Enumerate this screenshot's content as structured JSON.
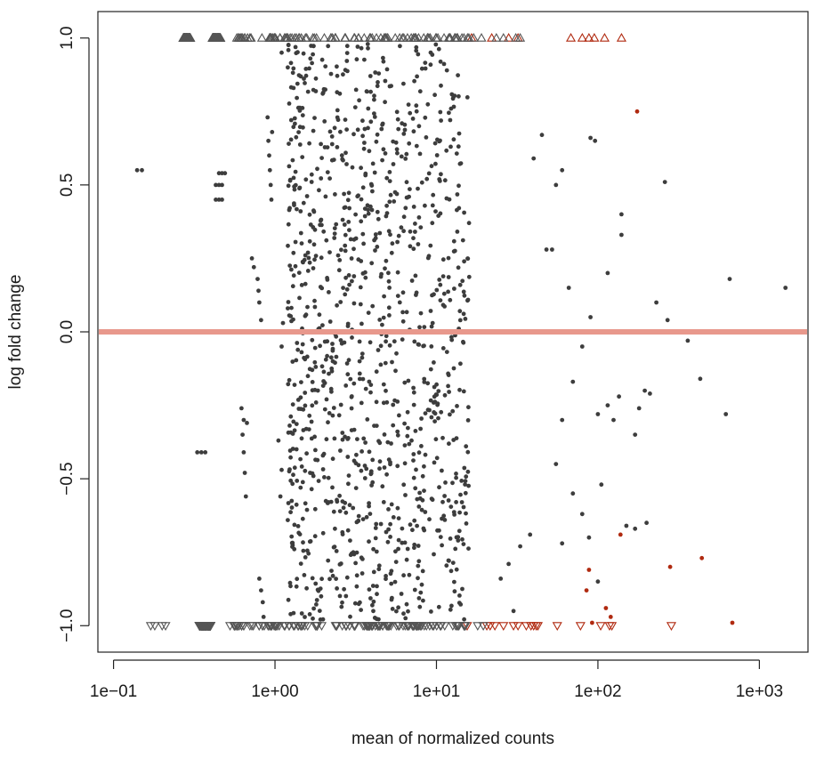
{
  "chart_data": {
    "type": "scatter",
    "title": "",
    "xlabel": "mean of normalized counts",
    "ylabel": "log fold change",
    "x_scale": "log10",
    "xlim": [
      0.08,
      2000
    ],
    "ylim": [
      -1.09,
      1.09
    ],
    "x_ticks": [
      {
        "value": 0.1,
        "label": "1e−01"
      },
      {
        "value": 1,
        "label": "1e+00"
      },
      {
        "value": 10,
        "label": "1e+01"
      },
      {
        "value": 100,
        "label": "1e+02"
      },
      {
        "value": 1000,
        "label": "1e+03"
      }
    ],
    "y_ticks": [
      {
        "value": -1.0,
        "label": "−1.0"
      },
      {
        "value": -0.5,
        "label": "−0.5"
      },
      {
        "value": 0.0,
        "label": "0.0"
      },
      {
        "value": 0.5,
        "label": "0.5"
      },
      {
        "value": 1.0,
        "label": "1.0"
      }
    ],
    "reference_line": {
      "y": 0,
      "color": "#e8988c"
    },
    "grid": false,
    "colors": {
      "not_significant": "#3d3d3d",
      "significant": "#b02a10"
    },
    "marker_legend": {
      "dot": "value within plotted range",
      "triangle_up": "value above 1 (clipped)",
      "triangle_down": "value below -1 (clipped)"
    },
    "series": [
      {
        "marker": "circle",
        "color": "#b02a10",
        "points": [
          [
            175,
            0.75
          ],
          [
            280,
            -0.8
          ],
          [
            440,
            -0.77
          ],
          [
            88,
            -0.81
          ],
          [
            85,
            -0.88
          ],
          [
            92,
            -0.99
          ],
          [
            112,
            -0.94
          ],
          [
            120,
            -0.97
          ],
          [
            680,
            -0.99
          ],
          [
            138,
            -0.69
          ]
        ]
      },
      {
        "marker": "circle",
        "color": "#3d3d3d",
        "points": [
          [
            0.14,
            0.55
          ],
          [
            0.15,
            0.55
          ],
          [
            0.43,
            0.5
          ],
          [
            0.45,
            0.5
          ],
          [
            0.47,
            0.5
          ],
          [
            0.43,
            0.45
          ],
          [
            0.45,
            0.45
          ],
          [
            0.47,
            0.45
          ],
          [
            0.45,
            0.54
          ],
          [
            0.47,
            0.54
          ],
          [
            0.49,
            0.54
          ],
          [
            0.33,
            -0.41
          ],
          [
            0.35,
            -0.41
          ],
          [
            0.37,
            -0.41
          ],
          [
            0.62,
            -0.26
          ],
          [
            0.63,
            -0.35
          ],
          [
            0.64,
            -0.41
          ],
          [
            0.65,
            -0.48
          ],
          [
            0.66,
            -0.56
          ],
          [
            0.67,
            -0.31
          ],
          [
            0.64,
            -0.3
          ],
          [
            0.72,
            0.25
          ],
          [
            0.74,
            0.22
          ],
          [
            0.78,
            0.18
          ],
          [
            0.79,
            0.14
          ],
          [
            0.8,
            0.1
          ],
          [
            0.82,
            0.04
          ],
          [
            0.9,
            0.73
          ],
          [
            0.91,
            0.65
          ],
          [
            0.92,
            0.6
          ],
          [
            0.93,
            0.55
          ],
          [
            0.94,
            0.5
          ],
          [
            0.95,
            0.45
          ],
          [
            0.96,
            0.68
          ],
          [
            0.8,
            -0.84
          ],
          [
            0.82,
            -0.88
          ],
          [
            0.84,
            -0.92
          ],
          [
            0.85,
            -0.97
          ],
          [
            1.1,
            0.95
          ],
          [
            1.2,
            0.9
          ],
          [
            1.12,
            0.03
          ],
          [
            1.15,
            0.0
          ],
          [
            1.1,
            -0.05
          ],
          [
            1.2,
            0.08
          ],
          [
            1.05,
            -0.37
          ],
          [
            1.1,
            -0.47
          ],
          [
            1.08,
            -0.56
          ],
          [
            655,
            0.18
          ],
          [
            1450,
            0.15
          ],
          [
            260,
            0.51
          ],
          [
            620,
            -0.28
          ],
          [
            430,
            -0.16
          ],
          [
            360,
            -0.03
          ],
          [
            270,
            0.04
          ],
          [
            230,
            0.1
          ],
          [
            195,
            -0.2
          ],
          [
            210,
            -0.21
          ],
          [
            180,
            -0.26
          ],
          [
            170,
            -0.35
          ],
          [
            135,
            -0.22
          ],
          [
            125,
            -0.3
          ],
          [
            115,
            -0.25
          ],
          [
            100,
            -0.28
          ],
          [
            115,
            0.2
          ],
          [
            140,
            0.33
          ],
          [
            140,
            0.4
          ],
          [
            96,
            0.65
          ],
          [
            90,
            0.66
          ],
          [
            60,
            0.55
          ],
          [
            40,
            0.59
          ],
          [
            45,
            0.67
          ],
          [
            55,
            0.5
          ],
          [
            52,
            0.28
          ],
          [
            48,
            0.28
          ],
          [
            66,
            0.15
          ],
          [
            90,
            0.05
          ],
          [
            95,
            0.0
          ],
          [
            80,
            -0.05
          ],
          [
            70,
            -0.17
          ],
          [
            60,
            -0.3
          ],
          [
            55,
            -0.45
          ],
          [
            70,
            -0.55
          ],
          [
            80,
            -0.62
          ],
          [
            88,
            -0.7
          ],
          [
            105,
            -0.52
          ],
          [
            150,
            -0.66
          ],
          [
            170,
            -0.67
          ],
          [
            200,
            -0.65
          ],
          [
            60,
            -0.72
          ],
          [
            100,
            -0.85
          ],
          [
            38,
            -0.69
          ],
          [
            33,
            -0.73
          ],
          [
            28,
            -0.79
          ],
          [
            30,
            -0.95
          ],
          [
            25,
            -0.84
          ]
        ],
        "generated_cloud": {
          "count": 1100,
          "x_range": [
            1.2,
            16
          ],
          "y_range": [
            -0.98,
            0.98
          ],
          "seed": 7
        }
      },
      {
        "marker": "triangle-up",
        "color": "#b02a10",
        "points": [
          [
            16.5,
            1
          ],
          [
            22,
            1
          ],
          [
            28,
            1
          ],
          [
            32,
            1
          ],
          [
            68,
            1
          ],
          [
            80,
            1
          ],
          [
            88,
            1
          ],
          [
            95,
            1
          ],
          [
            110,
            1
          ],
          [
            140,
            1
          ]
        ]
      },
      {
        "marker": "triangle-up",
        "color": "#555555",
        "points": [
          [
            17,
            1
          ],
          [
            19,
            1
          ],
          [
            23.5,
            1
          ],
          [
            26,
            1
          ],
          [
            31,
            1
          ],
          [
            33,
            1
          ]
        ],
        "generated_band": {
          "count": 260,
          "x_ranges": [
            [
              0.27,
              0.3
            ],
            [
              0.41,
              0.46
            ],
            [
              0.57,
              16
            ]
          ],
          "y": 1,
          "seed": 13
        }
      },
      {
        "marker": "triangle-down",
        "color": "#b02a10",
        "points": [
          [
            15.5,
            -1
          ],
          [
            20.5,
            -1
          ],
          [
            21.5,
            -1
          ],
          [
            23,
            -1
          ],
          [
            26,
            -1
          ],
          [
            30,
            -1
          ],
          [
            32,
            -1
          ],
          [
            36,
            -1
          ],
          [
            38.5,
            -1
          ],
          [
            40,
            -1
          ],
          [
            41.5,
            -1
          ],
          [
            42.5,
            -1
          ],
          [
            56,
            -1
          ],
          [
            78,
            -1
          ],
          [
            104,
            -1
          ],
          [
            118,
            -1
          ],
          [
            122,
            -1
          ],
          [
            285,
            -1
          ]
        ]
      },
      {
        "marker": "triangle-down",
        "color": "#555555",
        "points": [
          [
            0.17,
            -1
          ],
          [
            0.18,
            -1
          ],
          [
            0.2,
            -1
          ],
          [
            0.21,
            -1
          ],
          [
            18,
            -1
          ],
          [
            19.5,
            -1
          ]
        ],
        "generated_band": {
          "count": 240,
          "x_ranges": [
            [
              0.34,
              0.4
            ],
            [
              0.52,
              16
            ]
          ],
          "y": -1,
          "seed": 29
        }
      }
    ]
  }
}
